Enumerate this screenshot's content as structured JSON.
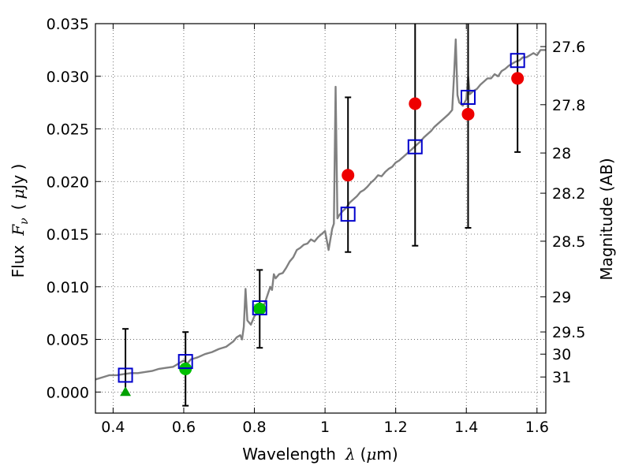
{
  "chart_data": {
    "type": "scatter",
    "xlabel": {
      "text": "Wavelength",
      "symbol": "λ",
      "unit_open": "(",
      "unit_mu": "μ",
      "unit_rest": "m)"
    },
    "ylabel": {
      "text": "Flux",
      "symbol": "F",
      "subscript": "ν",
      "unit_open": "(",
      "unit_mu": "μ",
      "unit_rest": "Jy )"
    },
    "y2label": "Magnitude (AB)",
    "xlim": [
      0.35,
      1.625
    ],
    "ylim": [
      -0.002,
      0.035
    ],
    "grid": true,
    "x_ticks": [
      0.4,
      0.6,
      0.8,
      1.0,
      1.2,
      1.4,
      1.6
    ],
    "x_tick_labels": [
      "0.4",
      "0.6",
      "0.8",
      "1",
      "1.2",
      "1.4",
      "1.6"
    ],
    "y_ticks": [
      0.0,
      0.005,
      0.01,
      0.015,
      0.02,
      0.025,
      0.03,
      0.035
    ],
    "y_tick_labels": [
      "0.000",
      "0.005",
      "0.010",
      "0.015",
      "0.020",
      "0.025",
      "0.030",
      "0.035"
    ],
    "y2_ticks": [
      {
        "label": "27.6",
        "flux": 0.03282
      },
      {
        "label": "27.8",
        "flux": 0.0273
      },
      {
        "label": "28",
        "flux": 0.02271
      },
      {
        "label": "28.2",
        "flux": 0.01889
      },
      {
        "label": "28.5",
        "flux": 0.01433
      },
      {
        "label": "29",
        "flux": 0.00904
      },
      {
        "label": "29.5",
        "flux": 0.00571
      },
      {
        "label": "30",
        "flux": 0.0036
      },
      {
        "label": "31",
        "flux": 0.00143
      }
    ],
    "series": [
      {
        "name": "model spectrum",
        "kind": "line",
        "color": "#808080",
        "x": [
          0.35,
          0.37,
          0.39,
          0.41,
          0.43,
          0.45,
          0.47,
          0.49,
          0.51,
          0.53,
          0.55,
          0.57,
          0.58,
          0.59,
          0.6,
          0.61,
          0.62,
          0.63,
          0.64,
          0.66,
          0.68,
          0.7,
          0.72,
          0.74,
          0.75,
          0.76,
          0.765,
          0.77,
          0.775,
          0.78,
          0.79,
          0.8,
          0.81,
          0.82,
          0.83,
          0.84,
          0.845,
          0.85,
          0.855,
          0.86,
          0.87,
          0.88,
          0.89,
          0.9,
          0.91,
          0.92,
          0.93,
          0.94,
          0.95,
          0.96,
          0.97,
          0.98,
          0.99,
          1.0,
          1.01,
          1.02,
          1.025,
          1.03,
          1.035,
          1.04,
          1.05,
          1.06,
          1.07,
          1.08,
          1.09,
          1.1,
          1.11,
          1.12,
          1.13,
          1.14,
          1.15,
          1.16,
          1.17,
          1.18,
          1.19,
          1.2,
          1.21,
          1.22,
          1.23,
          1.24,
          1.25,
          1.26,
          1.27,
          1.28,
          1.29,
          1.3,
          1.31,
          1.32,
          1.33,
          1.34,
          1.35,
          1.36,
          1.365,
          1.37,
          1.375,
          1.38,
          1.39,
          1.4,
          1.405,
          1.41,
          1.42,
          1.43,
          1.44,
          1.45,
          1.46,
          1.47,
          1.48,
          1.49,
          1.5,
          1.51,
          1.52,
          1.53,
          1.54,
          1.55,
          1.56,
          1.57,
          1.58,
          1.59,
          1.6,
          1.61,
          1.625
        ],
        "y": [
          0.0012,
          0.0014,
          0.0016,
          0.0016,
          0.0017,
          0.0018,
          0.0018,
          0.0019,
          0.002,
          0.0022,
          0.0023,
          0.0024,
          0.0026,
          0.0028,
          0.003,
          0.0027,
          0.0031,
          0.0032,
          0.0033,
          0.0036,
          0.0038,
          0.0041,
          0.0043,
          0.0048,
          0.0052,
          0.0054,
          0.005,
          0.0062,
          0.0098,
          0.0068,
          0.0064,
          0.0072,
          0.0076,
          0.0078,
          0.0085,
          0.0095,
          0.01,
          0.0097,
          0.0112,
          0.0108,
          0.0112,
          0.0113,
          0.0118,
          0.0124,
          0.0128,
          0.0135,
          0.0137,
          0.014,
          0.0141,
          0.0145,
          0.0143,
          0.0147,
          0.015,
          0.0153,
          0.0135,
          0.0155,
          0.016,
          0.029,
          0.0165,
          0.0168,
          0.0172,
          0.0175,
          0.018,
          0.0183,
          0.0186,
          0.019,
          0.0192,
          0.0195,
          0.0199,
          0.0202,
          0.0206,
          0.0205,
          0.0209,
          0.0212,
          0.0214,
          0.0218,
          0.022,
          0.0223,
          0.0226,
          0.0229,
          0.0232,
          0.0235,
          0.0238,
          0.0242,
          0.0245,
          0.0248,
          0.0252,
          0.0255,
          0.0258,
          0.0261,
          0.0264,
          0.0268,
          0.03,
          0.0335,
          0.0282,
          0.0275,
          0.0272,
          0.0278,
          0.03,
          0.0283,
          0.0286,
          0.0288,
          0.0292,
          0.0295,
          0.0298,
          0.0298,
          0.0302,
          0.03,
          0.0305,
          0.0307,
          0.031,
          0.0312,
          0.0314,
          0.0315,
          0.0318,
          0.0318,
          0.032,
          0.0322,
          0.032,
          0.0325,
          0.0325
        ]
      },
      {
        "name": "detections",
        "kind": "points",
        "marker": "circle",
        "color": "#ee0000",
        "points": [
          {
            "x": 1.065,
            "y": 0.0206
          },
          {
            "x": 1.255,
            "y": 0.0274
          },
          {
            "x": 1.405,
            "y": 0.0264
          },
          {
            "x": 1.545,
            "y": 0.0298
          }
        ]
      },
      {
        "name": "optical detections",
        "kind": "points",
        "marker": "circle",
        "color": "#00c000",
        "points": [
          {
            "x": 0.605,
            "y": 0.0022
          },
          {
            "x": 0.815,
            "y": 0.0079
          }
        ]
      },
      {
        "name": "upper limit",
        "kind": "points",
        "marker": "triangle",
        "color": "#00a000",
        "points": [
          {
            "x": 0.435,
            "y": 0.0
          }
        ]
      },
      {
        "name": "model photometry",
        "kind": "points",
        "marker": "open-square",
        "color": "#0000cc",
        "points": [
          {
            "x": 0.435,
            "y": 0.0016
          },
          {
            "x": 0.605,
            "y": 0.0029
          },
          {
            "x": 0.815,
            "y": 0.008
          },
          {
            "x": 1.065,
            "y": 0.0169
          },
          {
            "x": 1.255,
            "y": 0.0233
          },
          {
            "x": 1.405,
            "y": 0.028
          },
          {
            "x": 1.545,
            "y": 0.0315
          }
        ]
      },
      {
        "name": "error bars",
        "kind": "errorbars",
        "color": "#000000",
        "bars": [
          {
            "x": 0.435,
            "low": -0.0001,
            "high": 0.006
          },
          {
            "x": 0.605,
            "low": -0.0013,
            "high": 0.0057
          },
          {
            "x": 0.815,
            "low": 0.0042,
            "high": 0.0116
          },
          {
            "x": 1.065,
            "low": 0.0133,
            "high": 0.028
          },
          {
            "x": 1.255,
            "low": 0.0139,
            "high": 0.036,
            "capped": false
          },
          {
            "x": 1.405,
            "low": 0.0156,
            "high": 0.036,
            "capped": false
          },
          {
            "x": 1.545,
            "low": 0.0228,
            "high": 0.036,
            "capped": false
          }
        ]
      }
    ]
  }
}
